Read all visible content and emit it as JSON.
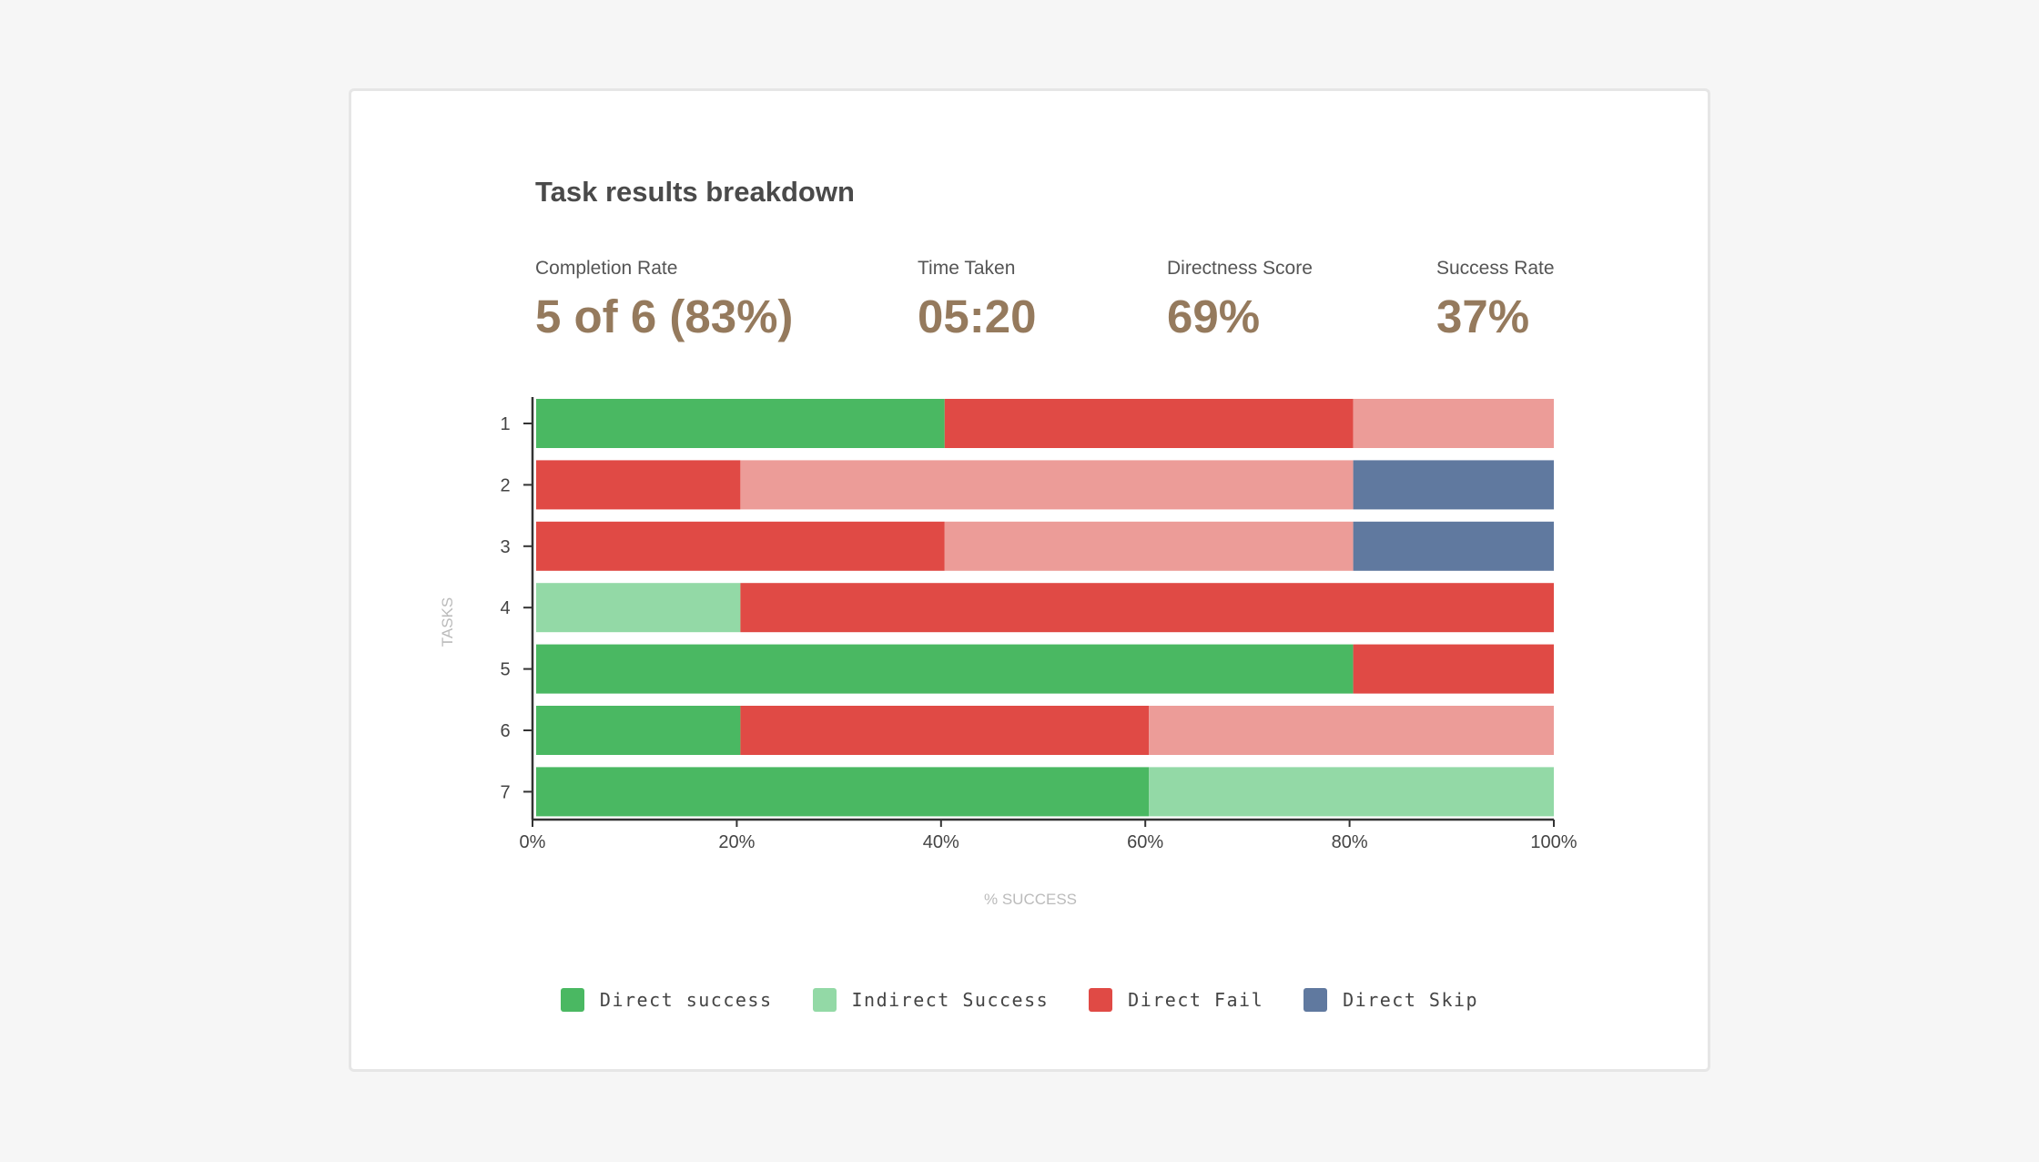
{
  "card": {
    "title": "Task results breakdown"
  },
  "kpis": [
    {
      "label": "Completion Rate",
      "value": "5 of 6 (83%)"
    },
    {
      "label": "Time Taken",
      "value": "05:20"
    },
    {
      "label": "Directness Score",
      "value": "69%"
    },
    {
      "label": "Success Rate",
      "value": "37%"
    }
  ],
  "colors": {
    "kpi_value": "#957a5d",
    "direct_success": "#4ab862",
    "indirect_success": "#93d9a6",
    "direct_fail": "#e04a45",
    "indirect_fail": "#ec9c98",
    "direct_skip": "#60799f",
    "axis": "#333333",
    "axis_title": "#bbbbbb"
  },
  "legend": [
    {
      "label": "Direct success",
      "color": "#4ab862"
    },
    {
      "label": "Indirect Success",
      "color": "#93d9a6"
    },
    {
      "label": "Direct Fail",
      "color": "#e04a45"
    },
    {
      "label": "Direct Skip",
      "color": "#60799f"
    }
  ],
  "chart_data": {
    "type": "bar",
    "orientation": "horizontal",
    "stacked": true,
    "categories": [
      "1",
      "2",
      "3",
      "4",
      "5",
      "6",
      "7"
    ],
    "xlabel": "% SUCCESS",
    "ylabel": "TASKS",
    "xlim": [
      0,
      100
    ],
    "x_ticks": [
      "0%",
      "20%",
      "40%",
      "60%",
      "80%",
      "100%"
    ],
    "grid": false,
    "legend_position": "bottom",
    "series": [
      {
        "name": "Direct success",
        "color": "#4ab862",
        "values": [
          40,
          0,
          0,
          0,
          80,
          20,
          60
        ]
      },
      {
        "name": "Indirect Success",
        "color": "#93d9a6",
        "values": [
          0,
          0,
          0,
          20,
          0,
          0,
          40
        ]
      },
      {
        "name": "Direct Fail",
        "color": "#e04a45",
        "values": [
          40,
          20,
          40,
          80,
          20,
          40,
          0
        ]
      },
      {
        "color": "#ec9c98",
        "values": [
          20,
          60,
          40,
          0,
          0,
          40,
          0
        ]
      },
      {
        "name": "Direct Skip",
        "color": "#60799f",
        "values": [
          0,
          20,
          20,
          0,
          0,
          0,
          0
        ]
      }
    ]
  }
}
